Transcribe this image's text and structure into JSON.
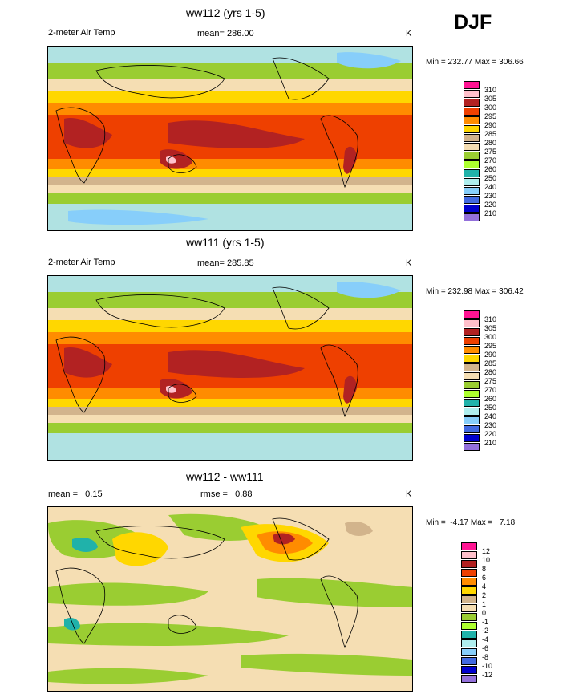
{
  "season_label": "DJF",
  "panels": [
    {
      "id": "top",
      "title": "ww112 (yrs 1-5)",
      "left_label": "2-meter Air Temp",
      "center_label": "mean= 286.00",
      "unit": "K",
      "minmax": "Min = 232.77 Max = 306.66"
    },
    {
      "id": "middle",
      "title": "ww111 (yrs 1-5)",
      "left_label": "2-meter Air Temp",
      "center_label": "mean= 285.85",
      "unit": "K",
      "minmax": "Min = 232.98 Max = 306.42"
    },
    {
      "id": "bottom",
      "title": "ww112 - ww111",
      "left_label": "mean =   0.15",
      "center_label": "rmse =   0.88",
      "unit": "K",
      "minmax": "Min =  -4.17 Max =   7.18"
    }
  ],
  "chart_data": [
    {
      "type": "heatmap",
      "title": "ww112 (yrs 1-5)",
      "variable": "2-meter Air Temp",
      "units": "K",
      "mean": 286.0,
      "min": 232.77,
      "max": 306.66,
      "legend_levels": [
        "310",
        "305",
        "300",
        "295",
        "290",
        "285",
        "280",
        "275",
        "270",
        "260",
        "250",
        "240",
        "230",
        "220",
        "210"
      ],
      "legend_colors": [
        "#ff1493",
        "#ffc0cb",
        "#b22222",
        "#ee4000",
        "#ff8c00",
        "#ffd700",
        "#d2b48c",
        "#f5deb3",
        "#9acd32",
        "#adff2f",
        "#20b2aa",
        "#afeeee",
        "#87cefa",
        "#4169e1",
        "#0000cd",
        "#9370db"
      ]
    },
    {
      "type": "heatmap",
      "title": "ww111 (yrs 1-5)",
      "variable": "2-meter Air Temp",
      "units": "K",
      "mean": 285.85,
      "min": 232.98,
      "max": 306.42,
      "legend_levels": [
        "310",
        "305",
        "300",
        "295",
        "290",
        "285",
        "280",
        "275",
        "270",
        "260",
        "250",
        "240",
        "230",
        "220",
        "210"
      ],
      "legend_colors": [
        "#ff1493",
        "#ffc0cb",
        "#b22222",
        "#ee4000",
        "#ff8c00",
        "#ffd700",
        "#d2b48c",
        "#f5deb3",
        "#9acd32",
        "#adff2f",
        "#20b2aa",
        "#afeeee",
        "#87cefa",
        "#4169e1",
        "#0000cd",
        "#9370db"
      ]
    },
    {
      "type": "heatmap",
      "title": "ww112 - ww111",
      "units": "K",
      "mean": 0.15,
      "rmse": 0.88,
      "min": -4.17,
      "max": 7.18,
      "legend_levels": [
        "12",
        "10",
        "8",
        "6",
        "4",
        "2",
        "1",
        "0",
        "-1",
        "-2",
        "-4",
        "-6",
        "-8",
        "-10",
        "-12"
      ],
      "legend_colors": [
        "#ff1493",
        "#ffc0cb",
        "#b22222",
        "#ee4000",
        "#ff8c00",
        "#ffd700",
        "#d2b48c",
        "#f5deb3",
        "#9acd32",
        "#adff2f",
        "#20b2aa",
        "#afeeee",
        "#87cefa",
        "#4169e1",
        "#0000cd",
        "#9370db"
      ]
    }
  ]
}
